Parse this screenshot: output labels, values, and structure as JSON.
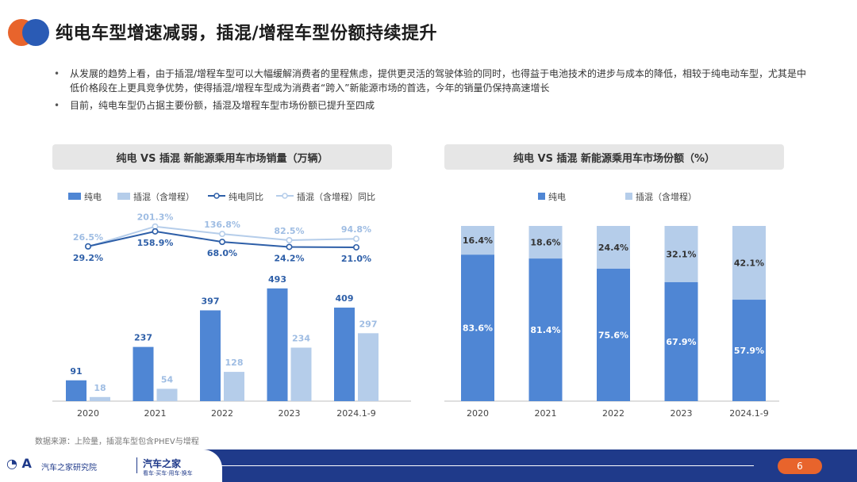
{
  "page": {
    "title": "纯电车型增速减弱，插混/增程车型份额持续提升",
    "bullets": [
      "从发展的趋势上看，由于插混/增程车型可以大幅缓解消费者的里程焦虑，提供更灵活的驾驶体验的同时，也得益于电池技术的进步与成本的降低，相较于纯电动车型，尤其是中低价格段在上更具竞争优势，使得插混/增程车型成为消费者“跨入”新能源市场的首选，今年的销量仍保持高速增长",
      "目前，纯电车型仍占据主要份额，插混及增程车型市场份额已提升至四成"
    ],
    "source_note": "数据来源：上险量，插混车型包含PHEV与增程",
    "page_number": "6",
    "footer": {
      "org": "汽车之家研究院",
      "brand": "汽车之家",
      "brand_sub": "看车·买车·用车·换车"
    }
  },
  "colors": {
    "bev": "#4f86d4",
    "phev": "#b5cdea",
    "bev_line": "#2e5fa8",
    "phev_line": "#b5cdea",
    "accent_orange": "#e8642c",
    "footer_blue": "#1f3a8a"
  },
  "chart_data": [
    {
      "type": "bar",
      "title": "纯电 VS 插混 新能源乘用车市场销量（万辆）",
      "legend_position": "top-left",
      "categories": [
        "2020",
        "2021",
        "2022",
        "2023",
        "2024.1-9"
      ],
      "series": [
        {
          "name": "纯电",
          "kind": "bar",
          "values": [
            91,
            237,
            397,
            493,
            409
          ],
          "labels": [
            "91",
            "237",
            "397",
            "493",
            "409"
          ]
        },
        {
          "name": "插混（含增程）",
          "kind": "bar",
          "values": [
            18,
            54,
            128,
            234,
            297
          ],
          "labels": [
            "18",
            "54",
            "128",
            "234",
            "297"
          ]
        },
        {
          "name": "纯电同比",
          "kind": "line",
          "values": [
            29.2,
            158.9,
            68.0,
            24.2,
            21.0
          ],
          "labels": [
            "29.2%",
            "158.9%",
            "68.0%",
            "24.2%",
            "21.0%"
          ]
        },
        {
          "name": "插混（含增程）同比",
          "kind": "line",
          "values": [
            26.5,
            201.3,
            136.8,
            82.5,
            94.8
          ],
          "labels": [
            "26.5%",
            "201.3%",
            "136.8%",
            "82.5%",
            "94.8%"
          ]
        }
      ],
      "ylim": [
        0,
        520
      ],
      "line_ylim": [
        0,
        220
      ],
      "grid": false
    },
    {
      "type": "bar",
      "stacked": true,
      "title": "纯电 VS 插混 新能源乘用车市场份额（%）",
      "legend_position": "top-center",
      "categories": [
        "2020",
        "2021",
        "2022",
        "2023",
        "2024.1-9"
      ],
      "series": [
        {
          "name": "纯电",
          "values": [
            83.6,
            81.4,
            75.6,
            67.9,
            57.9
          ],
          "labels": [
            "83.6%",
            "81.4%",
            "75.6%",
            "67.9%",
            "57.9%"
          ]
        },
        {
          "name": "插混（含增程）",
          "values": [
            16.4,
            18.6,
            24.4,
            32.1,
            42.1
          ],
          "labels": [
            "16.4%",
            "18.6%",
            "24.4%",
            "32.1%",
            "42.1%"
          ]
        }
      ],
      "ylim": [
        0,
        100
      ],
      "grid": false
    }
  ]
}
